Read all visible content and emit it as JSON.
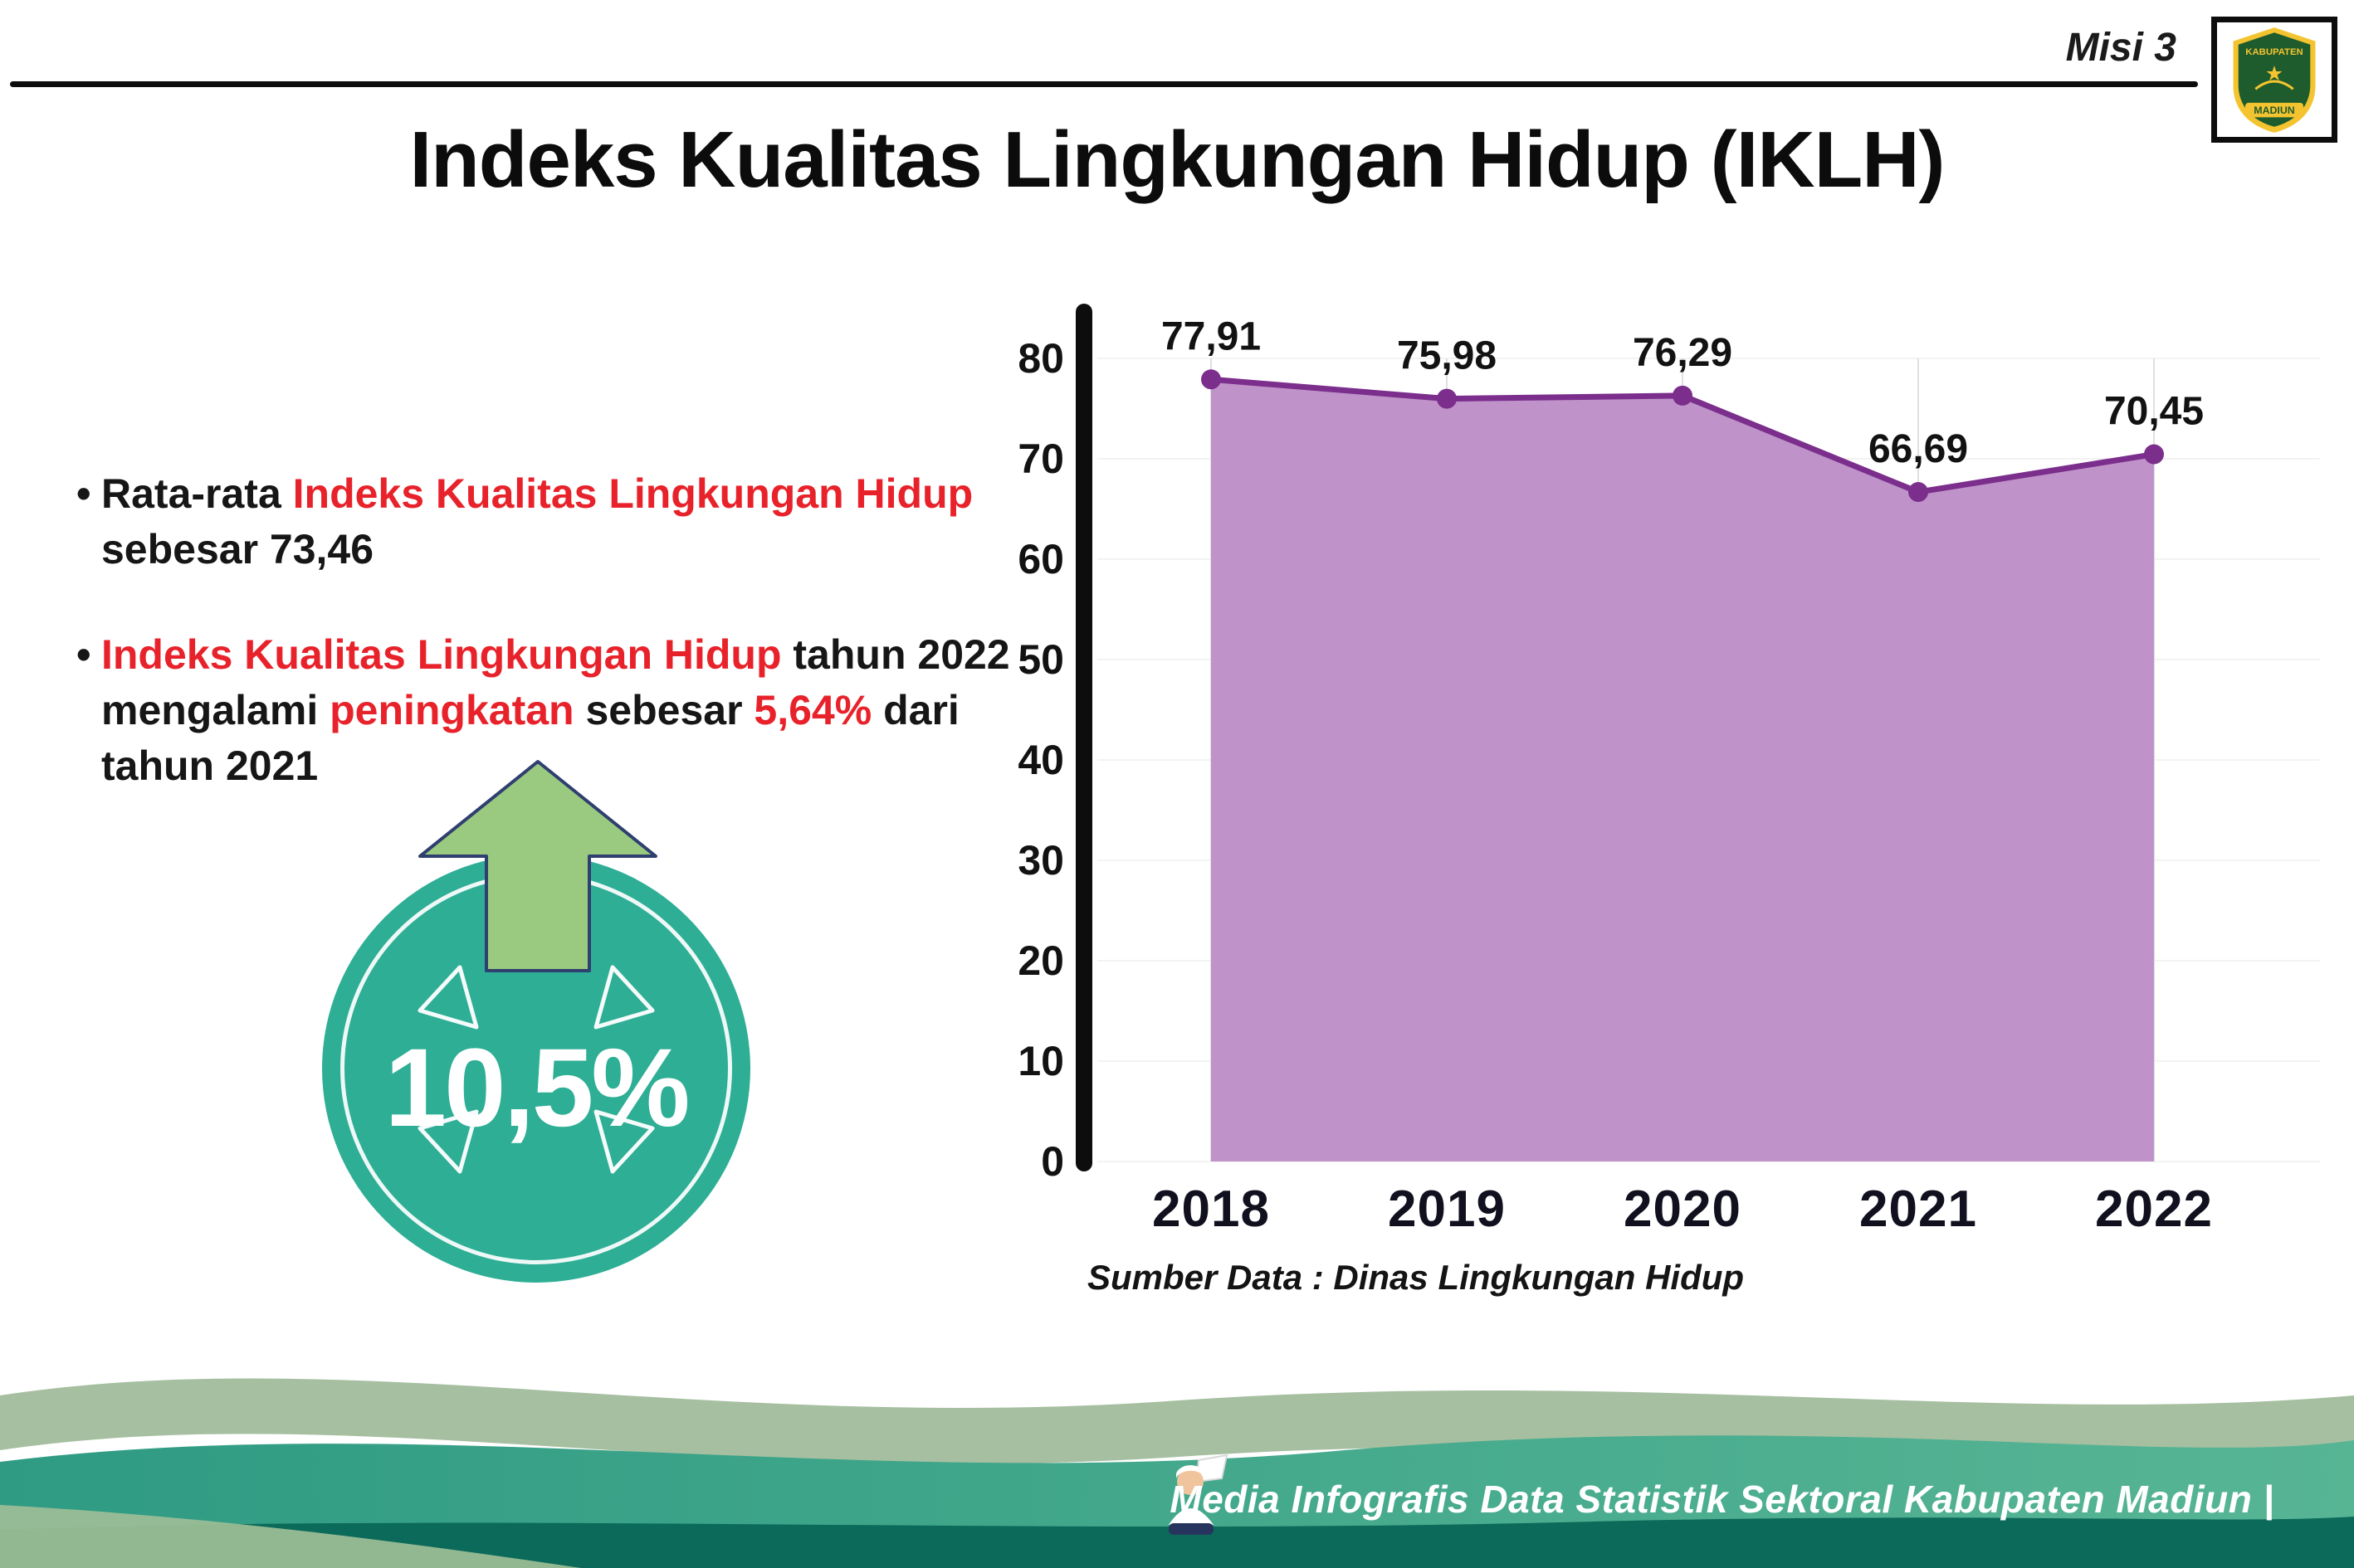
{
  "header": {
    "misi": "Misi 3",
    "title": "Indeks Kualitas Lingkungan Hidup (IKLH)",
    "logo": {
      "top_text": "KABUPATEN",
      "bottom_text": "MADIUN"
    }
  },
  "bullets": {
    "marker": "•",
    "b1": {
      "r1": "Rata-rata ",
      "r2": "Indeks Kualitas Lingkungan Hidup",
      "r3": "sebesar 73,46"
    },
    "b2": {
      "r1": "Indeks Kualitas Lingkungan Hidup",
      "r2": " tahun 2022",
      "r3": "mengalami ",
      "r4": "peningkatan",
      "r5": " sebesar ",
      "r6": "5,64%",
      "r7": " dari",
      "r8": "tahun 2021"
    }
  },
  "badge": {
    "value": "10,5%"
  },
  "chart_data": {
    "type": "area",
    "title": "Indeks Kualitas Lingkungan Hidup (IKLH)",
    "categories": [
      "2018",
      "2019",
      "2020",
      "2021",
      "2022"
    ],
    "values": [
      77.91,
      75.98,
      76.29,
      66.69,
      70.45
    ],
    "point_labels": [
      "77,91",
      "75,98",
      "76,29",
      "66,69",
      "70,45"
    ],
    "xlabel": "",
    "ylabel": "",
    "ylim": [
      0,
      80
    ],
    "yticks": [
      0,
      10,
      20,
      30,
      40,
      50,
      60,
      70,
      80
    ],
    "grid": "light-vertical",
    "legend": "none",
    "area_color": "#bf93c9",
    "line_color": "#7b2e8c",
    "axis_color": "#0d0d0d",
    "source_note": "Sumber Data : Dinas Lingkungan Hidup"
  },
  "footer": {
    "text": "Media Infografis Data Statistik Sektoral Kabupaten Madiun |"
  }
}
